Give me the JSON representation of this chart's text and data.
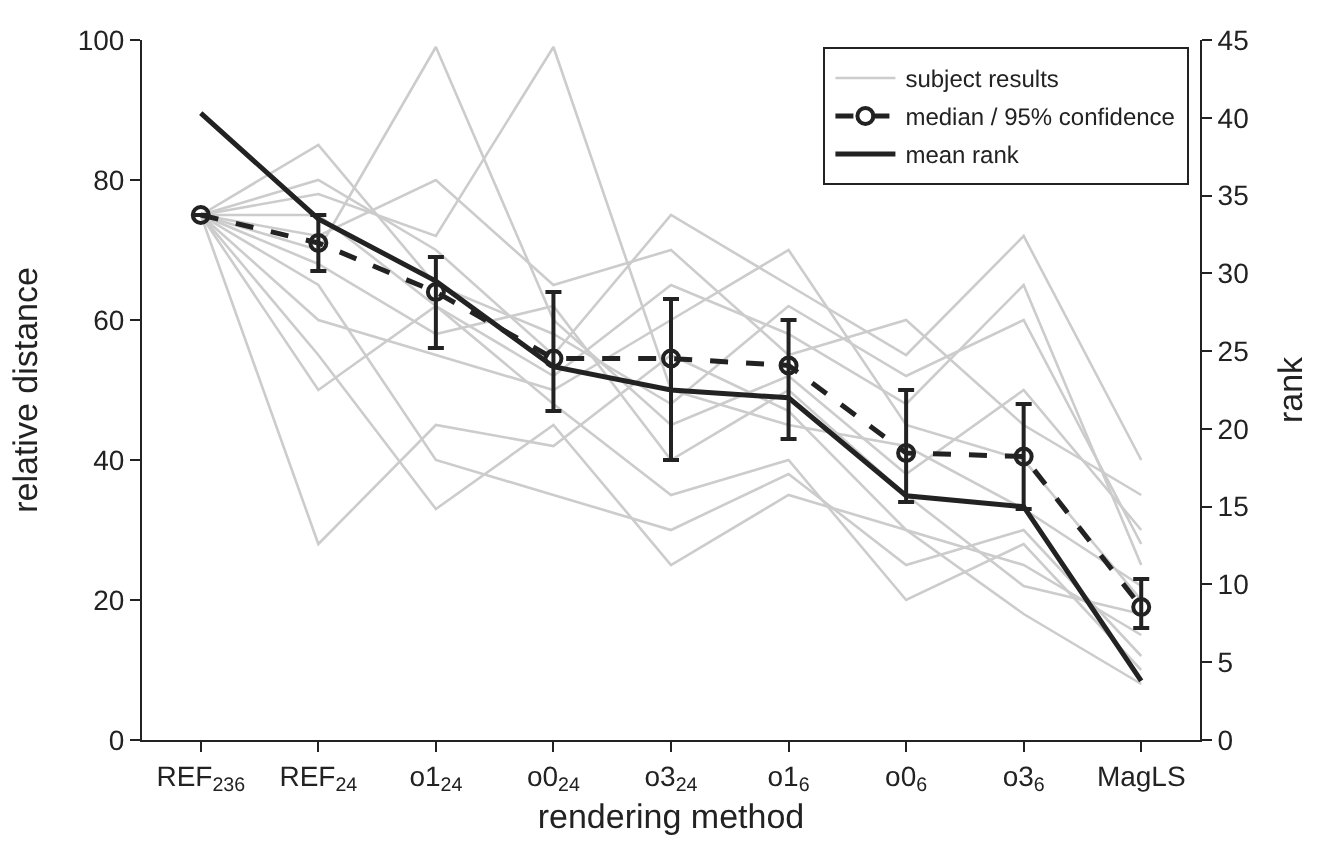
{
  "chart_data": {
    "type": "line",
    "xlabel": "rendering method",
    "ylabel": "relative distance",
    "y2label": "rank",
    "categories": [
      "REF$_{236}$",
      "REF$_{24}$",
      "o1$_{24}$",
      "o0$_{24}$",
      "o3$_{24}$",
      "o1$_{6}$",
      "o0$_{6}$",
      "o3$_{6}$",
      "MagLS"
    ],
    "ylim": [
      0,
      100
    ],
    "yticks": [
      0,
      20,
      40,
      60,
      80,
      100
    ],
    "y2lim": [
      0,
      45
    ],
    "y2ticks": [
      0,
      5,
      10,
      15,
      20,
      25,
      30,
      35,
      40,
      45
    ],
    "grid": false,
    "legend": "top right",
    "series": [
      {
        "name": "subject results",
        "color": "#cccccc",
        "values": [
          75,
          70,
          99,
          60,
          45,
          52,
          38,
          50,
          30
        ]
      },
      {
        "color": "#cccccc",
        "values": [
          75,
          60,
          55,
          50,
          60,
          70,
          45,
          40,
          20
        ]
      },
      {
        "color": "#cccccc",
        "values": [
          75,
          28,
          45,
          42,
          55,
          47,
          30,
          25,
          15
        ]
      },
      {
        "color": "#cccccc",
        "values": [
          75,
          85,
          65,
          58,
          48,
          62,
          52,
          60,
          28
        ]
      },
      {
        "color": "#cccccc",
        "values": [
          75,
          78,
          72,
          99,
          50,
          45,
          42,
          33,
          22
        ]
      },
      {
        "color": "#cccccc",
        "values": [
          75,
          65,
          40,
          35,
          30,
          38,
          25,
          30,
          12
        ]
      },
      {
        "color": "#cccccc",
        "values": [
          75,
          72,
          80,
          65,
          70,
          55,
          60,
          45,
          35
        ]
      },
      {
        "color": "#cccccc",
        "values": [
          75,
          50,
          62,
          48,
          35,
          40,
          20,
          28,
          10
        ]
      },
      {
        "color": "#cccccc",
        "values": [
          75,
          80,
          70,
          55,
          75,
          65,
          55,
          72,
          40
        ]
      },
      {
        "color": "#cccccc",
        "values": [
          75,
          68,
          58,
          62,
          40,
          50,
          35,
          22,
          18
        ]
      },
      {
        "color": "#cccccc",
        "values": [
          75,
          55,
          33,
          45,
          25,
          35,
          30,
          18,
          8
        ]
      },
      {
        "color": "#cccccc",
        "values": [
          75,
          75,
          62,
          52,
          65,
          58,
          48,
          65,
          25
        ]
      },
      {
        "name": "median / 95% confidence",
        "color": "#222222",
        "line_style": "dashed",
        "marker": "circle",
        "values": [
          75,
          71,
          64,
          54.5,
          54.5,
          53.5,
          41,
          40.5,
          19
        ],
        "errors": [
          null,
          [
            67,
            75
          ],
          [
            56,
            69
          ],
          [
            47,
            64
          ],
          [
            40,
            63
          ],
          [
            43,
            60
          ],
          [
            34,
            50
          ],
          [
            33,
            48
          ],
          [
            16,
            23
          ]
        ]
      },
      {
        "name": "mean rank",
        "color": "#222222",
        "line_style": "solid",
        "marker": "none",
        "axis": "y2",
        "values": [
          40.3,
          33.5,
          29.5,
          24,
          22.5,
          22,
          15.7,
          15,
          3.8
        ]
      }
    ]
  }
}
